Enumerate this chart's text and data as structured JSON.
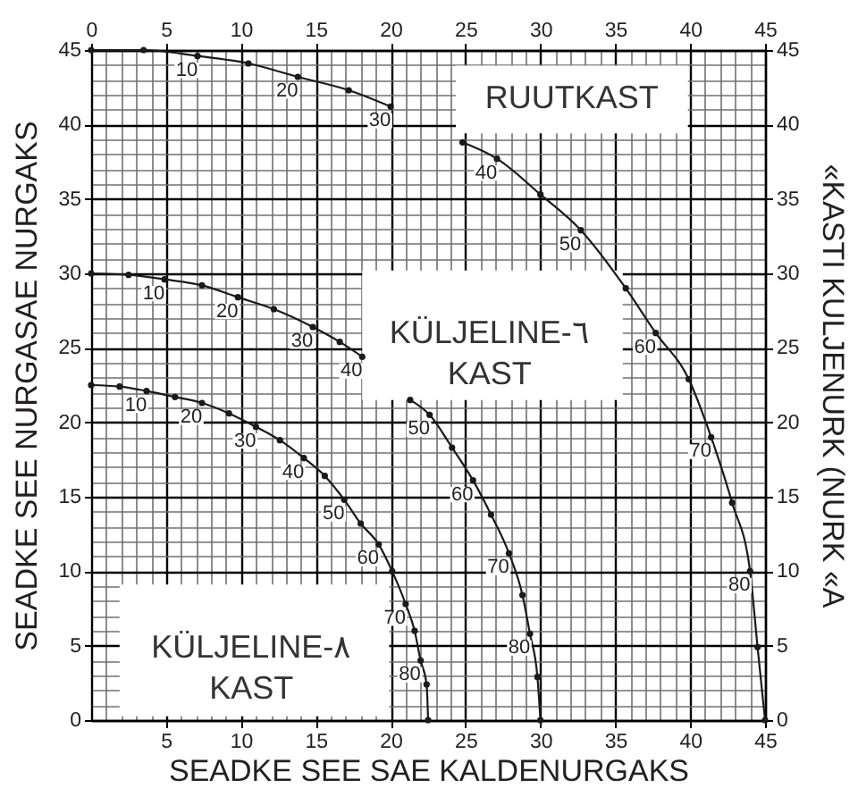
{
  "chart_data": {
    "type": "line",
    "xlabel": "SEADKE SEE SAE KALDENURGAKS",
    "ylabel": "SEADKE SEE NURGASAE NURGAKS",
    "y2label": "«KASTI KULJENURK (NURK «A",
    "xlim": [
      0,
      45
    ],
    "ylim": [
      0,
      45
    ],
    "x2lim": [
      0,
      45
    ],
    "y2lim": [
      0,
      45
    ],
    "xticks": [
      {
        "value": 0,
        "label": null
      },
      {
        "value": 1,
        "label": null
      },
      {
        "value": 2,
        "label": null
      },
      {
        "value": 3,
        "label": null
      },
      {
        "value": 4,
        "label": null
      },
      5,
      {
        "value": 6,
        "label": null
      },
      {
        "value": 7,
        "label": null
      },
      {
        "value": 8,
        "label": null
      },
      {
        "value": 9,
        "label": null
      },
      10,
      {
        "value": 11,
        "label": null
      },
      {
        "value": 12,
        "label": null
      },
      {
        "value": 13,
        "label": null
      },
      {
        "value": 14,
        "label": null
      },
      15,
      {
        "value": 16,
        "label": null
      },
      {
        "value": 17,
        "label": null
      },
      {
        "value": 18,
        "label": null
      },
      {
        "value": 19,
        "label": null
      },
      20,
      {
        "value": 21,
        "label": null
      },
      {
        "value": 22,
        "label": null
      },
      {
        "value": 23,
        "label": null
      },
      {
        "value": 24,
        "label": null
      },
      25,
      {
        "value": 26,
        "label": null
      },
      {
        "value": 27,
        "label": null
      },
      {
        "value": 28,
        "label": null
      },
      {
        "value": 29,
        "label": null
      },
      30,
      {
        "value": 31,
        "label": null
      },
      {
        "value": 32,
        "label": null
      },
      {
        "value": 33,
        "label": null
      },
      {
        "value": 34,
        "label": null
      },
      35,
      {
        "value": 36,
        "label": null
      },
      {
        "value": 37,
        "label": null
      },
      {
        "value": 38,
        "label": null
      },
      {
        "value": 39,
        "label": null
      },
      40,
      {
        "value": 41,
        "label": null
      },
      {
        "value": 42,
        "label": null
      },
      {
        "value": 43,
        "label": null
      },
      {
        "value": 44,
        "label": null
      },
      45
    ],
    "yticks": [
      0,
      {
        "value": 1,
        "label": null
      },
      {
        "value": 2,
        "label": null
      },
      {
        "value": 3,
        "label": null
      },
      {
        "value": 4,
        "label": null
      },
      5,
      {
        "value": 6,
        "label": null
      },
      {
        "value": 7,
        "label": null
      },
      {
        "value": 8,
        "label": null
      },
      {
        "value": 9,
        "label": null
      },
      10,
      {
        "value": 11,
        "label": null
      },
      {
        "value": 12,
        "label": null
      },
      {
        "value": 13,
        "label": null
      },
      {
        "value": 14,
        "label": null
      },
      15,
      {
        "value": 16,
        "label": null
      },
      {
        "value": 17,
        "label": null
      },
      {
        "value": 18,
        "label": null
      },
      {
        "value": 19,
        "label": null
      },
      20,
      {
        "value": 21,
        "label": null
      },
      {
        "value": 22,
        "label": null
      },
      {
        "value": 23,
        "label": null
      },
      {
        "value": 24,
        "label": null
      },
      25,
      {
        "value": 26,
        "label": null
      },
      {
        "value": 27,
        "label": null
      },
      {
        "value": 28,
        "label": null
      },
      {
        "value": 29,
        "label": null
      },
      30,
      {
        "value": 31,
        "label": null
      },
      {
        "value": 32,
        "label": null
      },
      {
        "value": 33,
        "label": null
      },
      {
        "value": 34,
        "label": null
      },
      35,
      {
        "value": 36,
        "label": null
      },
      {
        "value": 37,
        "label": null
      },
      {
        "value": 38,
        "label": null
      },
      {
        "value": 39,
        "label": null
      },
      40,
      {
        "value": 41,
        "label": null
      },
      {
        "value": 42,
        "label": null
      },
      {
        "value": 43,
        "label": null
      },
      {
        "value": 44,
        "label": null
      },
      45
    ],
    "x2ticks": [
      0,
      5,
      10,
      15,
      20,
      25,
      30,
      35,
      40,
      45
    ],
    "y2ticks": [
      0,
      5,
      10,
      15,
      20,
      25,
      30,
      35,
      40,
      45
    ],
    "grid": true,
    "marker": "circle",
    "line_style": "solid",
    "series": [
      {
        "name": "RUUTKAST",
        "color": "#1a1a1a",
        "x": [
          0,
          3.5,
          7.1,
          10.5,
          13.8,
          17.2,
          20.0,
          22.3,
          24.8,
          27.1,
          30.0,
          32.7,
          35.7,
          37.7,
          39.9,
          41.4,
          42.8,
          44.0,
          44.5,
          45
        ],
        "values": [
          45,
          45.0,
          44.6,
          44.1,
          43.2,
          42.3,
          41.2,
          null,
          38.8,
          37.7,
          35.3,
          32.9,
          29.0,
          26.0,
          22.9,
          19.0,
          14.6,
          10.0,
          4.9,
          0
        ]
      },
      {
        "name": "KÜLJELINE-٦ KAST",
        "color": "#1a1a1a",
        "x": [
          0,
          2.5,
          4.9,
          7.4,
          9.8,
          12.2,
          14.8,
          16.6,
          18.1,
          19.6,
          21.3,
          22.6,
          24.1,
          25.5,
          26.7,
          27.9,
          28.8,
          29.3,
          29.8,
          30
        ],
        "values": [
          30,
          29.9,
          29.6,
          29.2,
          28.4,
          27.6,
          26.4,
          25.4,
          24.4,
          null,
          21.5,
          20.5,
          18.3,
          16.1,
          13.8,
          11.2,
          8.4,
          5.8,
          2.9,
          0
        ]
      },
      {
        "name": "KÜLJELINE-٨ KAST",
        "color": "#1a1a1a",
        "x": [
          0,
          1.9,
          3.7,
          5.6,
          7.4,
          9.2,
          11.0,
          12.6,
          14.2,
          15.6,
          16.9,
          18.0,
          19.2,
          20.1,
          21.0,
          21.6,
          22.0,
          22.4,
          22.5
        ],
        "values": [
          22.5,
          22.4,
          22.1,
          21.7,
          21.3,
          20.6,
          19.7,
          18.8,
          17.6,
          16.4,
          14.8,
          13.2,
          11.8,
          10.0,
          7.8,
          6.0,
          4.0,
          2.4,
          0
        ]
      }
    ],
    "annotations": [
      {
        "text": "10",
        "x": 7.1,
        "y": 44.6
      },
      {
        "text": "20",
        "x": 13.8,
        "y": 43.2
      },
      {
        "text": "30",
        "x": 20.0,
        "y": 41.2
      },
      {
        "text": "40",
        "x": 27.1,
        "y": 37.7
      },
      {
        "text": "50",
        "x": 32.7,
        "y": 32.9
      },
      {
        "text": "60",
        "x": 37.7,
        "y": 26.0
      },
      {
        "text": "70",
        "x": 41.4,
        "y": 19.0
      },
      {
        "text": "80",
        "x": 44.0,
        "y": 10.0
      },
      {
        "text": "10",
        "x": 4.9,
        "y": 29.6
      },
      {
        "text": "20",
        "x": 9.8,
        "y": 28.4
      },
      {
        "text": "30",
        "x": 14.8,
        "y": 26.4
      },
      {
        "text": "40",
        "x": 18.1,
        "y": 24.4
      },
      {
        "text": "50",
        "x": 22.6,
        "y": 20.5
      },
      {
        "text": "60",
        "x": 25.5,
        "y": 16.1
      },
      {
        "text": "70",
        "x": 27.9,
        "y": 11.2
      },
      {
        "text": "80",
        "x": 29.3,
        "y": 5.8
      },
      {
        "text": "10",
        "x": 3.7,
        "y": 22.1
      },
      {
        "text": "20",
        "x": 7.4,
        "y": 21.3
      },
      {
        "text": "30",
        "x": 11.0,
        "y": 19.7
      },
      {
        "text": "40",
        "x": 14.2,
        "y": 17.6
      },
      {
        "text": "50",
        "x": 16.9,
        "y": 14.8
      },
      {
        "text": "60",
        "x": 19.2,
        "y": 11.8
      },
      {
        "text": "70",
        "x": 21.0,
        "y": 7.8
      },
      {
        "text": "80",
        "x": 22.0,
        "y": 4.0
      }
    ]
  }
}
